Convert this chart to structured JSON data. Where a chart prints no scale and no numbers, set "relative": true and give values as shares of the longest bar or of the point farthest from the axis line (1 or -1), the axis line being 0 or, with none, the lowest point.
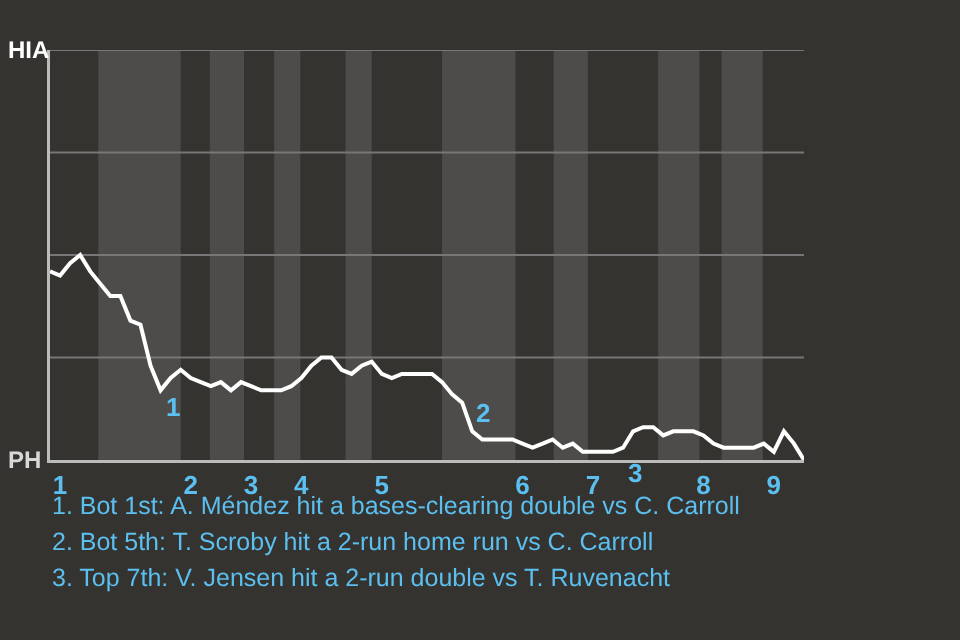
{
  "chart_data": {
    "type": "line",
    "relative": true,
    "categories": [
      null,
      "1",
      null,
      null,
      null,
      null,
      null,
      null,
      null,
      null,
      null,
      null,
      null,
      null,
      "2",
      null,
      null,
      null,
      null,
      null,
      "3",
      null,
      null,
      null,
      null,
      "4",
      null,
      null,
      null,
      null,
      null,
      null,
      null,
      "5",
      null,
      null,
      null,
      null,
      null,
      null,
      null,
      null,
      null,
      null,
      null,
      null,
      null,
      "6",
      null,
      null,
      null,
      null,
      null,
      null,
      "7",
      null,
      null,
      null,
      null,
      null,
      null,
      null,
      null,
      null,
      null,
      "8",
      null,
      null,
      null,
      null,
      null,
      null,
      "9",
      null,
      null,
      null
    ],
    "ref_lines": [
      {
        "axis": "y",
        "value": 0.5,
        "label": null,
        "color": "#777777"
      },
      {
        "axis": "y",
        "value": 1.0,
        "label": null,
        "color": "#777777"
      },
      {
        "axis": "y",
        "value": 1.5,
        "label": null,
        "color": "#777777"
      },
      {
        "axis": "y",
        "value": 2.0,
        "label": null,
        "color": "#777777"
      }
    ],
    "series": [
      {
        "color": "#ffffff",
        "values": [
          0.92,
          0.9,
          0.96,
          1.0,
          0.92,
          0.86,
          0.8,
          0.8,
          0.68,
          0.66,
          0.46,
          0.34,
          0.4,
          0.44,
          0.4,
          0.38,
          0.36,
          0.38,
          0.34,
          0.38,
          0.36,
          0.34,
          0.34,
          0.34,
          0.36,
          0.4,
          0.46,
          0.5,
          0.5,
          0.44,
          0.42,
          0.46,
          0.48,
          0.42,
          0.4,
          0.42,
          0.42,
          0.42,
          0.42,
          0.38,
          0.32,
          0.28,
          0.14,
          0.1,
          0.1,
          0.1,
          0.1,
          0.08,
          0.06,
          0.08,
          0.1,
          0.06,
          0.08,
          0.04,
          0.04,
          0.04,
          0.04,
          0.06,
          0.14,
          0.16,
          0.16,
          0.12,
          0.14,
          0.14,
          0.14,
          0.12,
          0.08,
          0.06,
          0.06,
          0.06,
          0.06,
          0.08,
          0.04,
          0.14,
          0.08,
          0.0
        ]
      }
    ],
    "annotations": [
      "HIA",
      "PH",
      "1",
      "2",
      "3",
      "1. Bot 1st: A. Méndez hit a bases-clearing double vs C. Carroll",
      "2. Bot 5th: T. Scroby hit a 2-run home run vs C. Carroll",
      "3. Top 7th: V. Jensen hit a 2-run double vs T. Ruvenacht"
    ]
  }
}
